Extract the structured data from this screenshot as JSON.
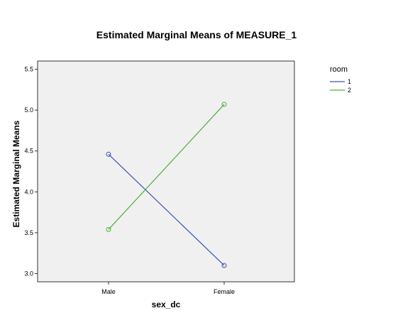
{
  "chart_data": {
    "type": "line",
    "title": "Estimated Marginal Means of MEASURE_1",
    "xlabel": "sex_dc",
    "ylabel": "Estimated Marginal Means",
    "categories": [
      "Male",
      "Female"
    ],
    "ylim": [
      2.9,
      5.6
    ],
    "yticks": [
      "3.0",
      "3.5",
      "4.0",
      "4.5",
      "5.0",
      "5.5"
    ],
    "grid": false,
    "legend_title": "room",
    "legend_position": "top-right",
    "series": [
      {
        "name": "1",
        "color": "#3f51b5",
        "values": [
          4.46,
          3.1
        ]
      },
      {
        "name": "2",
        "color": "#4caf3a",
        "values": [
          3.54,
          5.07
        ]
      }
    ],
    "marker": "circle-open",
    "plot_background": "#f0f0f0"
  }
}
